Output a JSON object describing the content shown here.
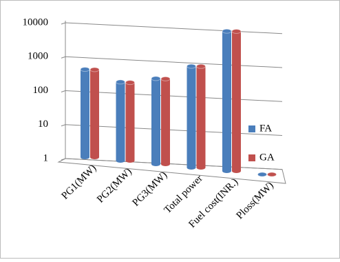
{
  "chart_data": {
    "type": "bar3d",
    "categories": [
      "PG1(MW)",
      "PG2(MW)",
      "PG3(MW)",
      "Total power",
      "Fuel cost(INR.)",
      "Ploss(MW)"
    ],
    "series": [
      {
        "name": "FA",
        "color": "#4a7ebb",
        "values": [
          290,
          160,
          250,
          690,
          8300,
          1
        ]
      },
      {
        "name": "GA",
        "color": "#c0504d",
        "values": [
          285,
          155,
          245,
          685,
          8200,
          1
        ]
      }
    ],
    "ylim": [
      1,
      10000
    ],
    "yticks": [
      1,
      10,
      100,
      1000,
      10000
    ],
    "log_scale": true,
    "grid": true,
    "legend": "right"
  }
}
